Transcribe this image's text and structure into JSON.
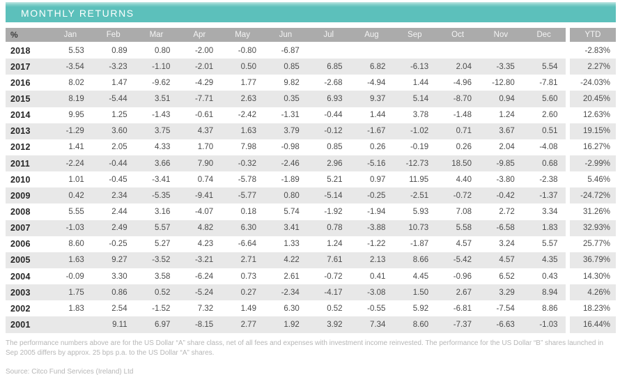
{
  "title": "MONTHLY RETURNS",
  "colors": {
    "accent_teal": "#5cc0bb",
    "header_gray": "#ababab",
    "row_stripe": "#e8e8e8",
    "value_text": "#4b4b4b",
    "footnote_text": "#b6b6b6"
  },
  "table": {
    "corner_label": "%",
    "months": [
      "Jan",
      "Feb",
      "Mar",
      "Apr",
      "May",
      "Jun",
      "Jul",
      "Aug",
      "Sep",
      "Oct",
      "Nov",
      "Dec"
    ],
    "ytd_label": "YTD",
    "rows": [
      {
        "year": "2018",
        "values": [
          "5.53",
          "0.89",
          "0.80",
          "-2.00",
          "-0.80",
          "-6.87",
          "",
          "",
          "",
          "",
          "",
          ""
        ],
        "ytd": "-2.83%"
      },
      {
        "year": "2017",
        "values": [
          "-3.54",
          "-3.23",
          "-1.10",
          "-2.01",
          "0.50",
          "0.85",
          "6.85",
          "6.82",
          "-6.13",
          "2.04",
          "-3.35",
          "5.54"
        ],
        "ytd": "2.27%"
      },
      {
        "year": "2016",
        "values": [
          "8.02",
          "1.47",
          "-9.62",
          "-4.29",
          "1.77",
          "9.82",
          "-2.68",
          "-4.94",
          "1.44",
          "-4.96",
          "-12.80",
          "-7.81"
        ],
        "ytd": "-24.03%"
      },
      {
        "year": "2015",
        "values": [
          "8.19",
          "-5.44",
          "3.51",
          "-7.71",
          "2.63",
          "0.35",
          "6.93",
          "9.37",
          "5.14",
          "-8.70",
          "0.94",
          "5.60"
        ],
        "ytd": "20.45%"
      },
      {
        "year": "2014",
        "values": [
          "9.95",
          "1.25",
          "-1.43",
          "-0.61",
          "-2.42",
          "-1.31",
          "-0.44",
          "1.44",
          "3.78",
          "-1.48",
          "1.24",
          "2.60"
        ],
        "ytd": "12.63%"
      },
      {
        "year": "2013",
        "values": [
          "-1.29",
          "3.60",
          "3.75",
          "4.37",
          "1.63",
          "3.79",
          "-0.12",
          "-1.67",
          "-1.02",
          "0.71",
          "3.67",
          "0.51"
        ],
        "ytd": "19.15%"
      },
      {
        "year": "2012",
        "values": [
          "1.41",
          "2.05",
          "4.33",
          "1.70",
          "7.98",
          "-0.98",
          "0.85",
          "0.26",
          "-0.19",
          "0.26",
          "2.04",
          "-4.08"
        ],
        "ytd": "16.27%"
      },
      {
        "year": "2011",
        "values": [
          "-2.24",
          "-0.44",
          "3.66",
          "7.90",
          "-0.32",
          "-2.46",
          "2.96",
          "-5.16",
          "-12.73",
          "18.50",
          "-9.85",
          "0.68"
        ],
        "ytd": "-2.99%"
      },
      {
        "year": "2010",
        "values": [
          "1.01",
          "-0.45",
          "-3.41",
          "0.74",
          "-5.78",
          "-1.89",
          "5.21",
          "0.97",
          "11.95",
          "4.40",
          "-3.80",
          "-2.38"
        ],
        "ytd": "5.46%"
      },
      {
        "year": "2009",
        "values": [
          "0.42",
          "2.34",
          "-5.35",
          "-9.41",
          "-5.77",
          "0.80",
          "-5.14",
          "-0.25",
          "-2.51",
          "-0.72",
          "-0.42",
          "-1.37"
        ],
        "ytd": "-24.72%"
      },
      {
        "year": "2008",
        "values": [
          "5.55",
          "2.44",
          "3.16",
          "-4.07",
          "0.18",
          "5.74",
          "-1.92",
          "-1.94",
          "5.93",
          "7.08",
          "2.72",
          "3.34"
        ],
        "ytd": "31.26%"
      },
      {
        "year": "2007",
        "values": [
          "-1.03",
          "2.49",
          "5.57",
          "4.82",
          "6.30",
          "3.41",
          "0.78",
          "-3.88",
          "10.73",
          "5.58",
          "-6.58",
          "1.83"
        ],
        "ytd": "32.93%"
      },
      {
        "year": "2006",
        "values": [
          "8.60",
          "-0.25",
          "5.27",
          "4.23",
          "-6.64",
          "1.33",
          "1.24",
          "-1.22",
          "-1.87",
          "4.57",
          "3.24",
          "5.57"
        ],
        "ytd": "25.77%"
      },
      {
        "year": "2005",
        "values": [
          "1.63",
          "9.27",
          "-3.52",
          "-3.21",
          "2.71",
          "4.22",
          "7.61",
          "2.13",
          "8.66",
          "-5.42",
          "4.57",
          "4.35"
        ],
        "ytd": "36.79%"
      },
      {
        "year": "2004",
        "values": [
          "-0.09",
          "3.30",
          "3.58",
          "-6.24",
          "0.73",
          "2.61",
          "-0.72",
          "0.41",
          "4.45",
          "-0.96",
          "6.52",
          "0.43"
        ],
        "ytd": "14.30%"
      },
      {
        "year": "2003",
        "values": [
          "1.75",
          "0.86",
          "0.52",
          "-5.24",
          "0.27",
          "-2.34",
          "-4.17",
          "-3.08",
          "1.50",
          "2.67",
          "3.29",
          "8.94"
        ],
        "ytd": "4.26%"
      },
      {
        "year": "2002",
        "values": [
          "1.83",
          "2.54",
          "-1.52",
          "7.32",
          "1.49",
          "6.30",
          "0.52",
          "-0.55",
          "5.92",
          "-6.81",
          "-7.54",
          "8.86"
        ],
        "ytd": "18.23%"
      },
      {
        "year": "2001",
        "values": [
          "",
          "9.11",
          "6.97",
          "-8.15",
          "2.77",
          "1.92",
          "3.92",
          "7.34",
          "8.60",
          "-7.37",
          "-6.63",
          "-1.03"
        ],
        "ytd": "16.44%"
      }
    ]
  },
  "footnote": "The performance numbers above are for the US Dollar “A” share class, net of all fees and expenses with investment income reinvested. The performance for the US Dollar “B” shares launched in Sep 2005 differs by approx. 25 bps p.a. to the US Dollar “A” shares.",
  "source": "Source: Citco Fund Services (Ireland) Ltd"
}
